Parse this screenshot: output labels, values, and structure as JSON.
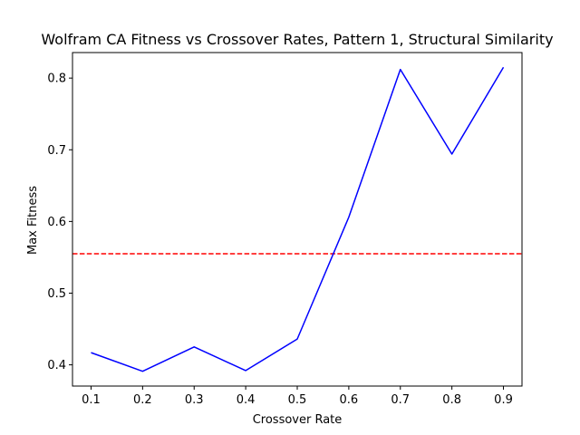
{
  "chart_data": {
    "type": "line",
    "title": "Wolfram CA Fitness vs Crossover Rates, Pattern 1, Structural Similarity",
    "xlabel": "Crossover Rate",
    "ylabel": "Max Fitness",
    "xlim": [
      0.064,
      0.936
    ],
    "ylim": [
      0.3704,
      0.8356
    ],
    "xticks": [
      "0.1",
      "0.2",
      "0.3",
      "0.4",
      "0.5",
      "0.6",
      "0.7",
      "0.8",
      "0.9"
    ],
    "yticks": [
      "0.4",
      "0.5",
      "0.6",
      "0.7",
      "0.8"
    ],
    "grid": false,
    "series": [
      {
        "color": "#0000ff",
        "x": [
          0.1,
          0.2,
          0.3,
          0.4,
          0.5,
          0.6,
          0.7,
          0.8,
          0.9
        ],
        "y": [
          0.417,
          0.391,
          0.425,
          0.392,
          0.436,
          0.606,
          0.812,
          0.694,
          0.815
        ]
      }
    ],
    "reference_line": {
      "y": 0.555,
      "color": "#ff0000",
      "style": "dashed"
    }
  }
}
